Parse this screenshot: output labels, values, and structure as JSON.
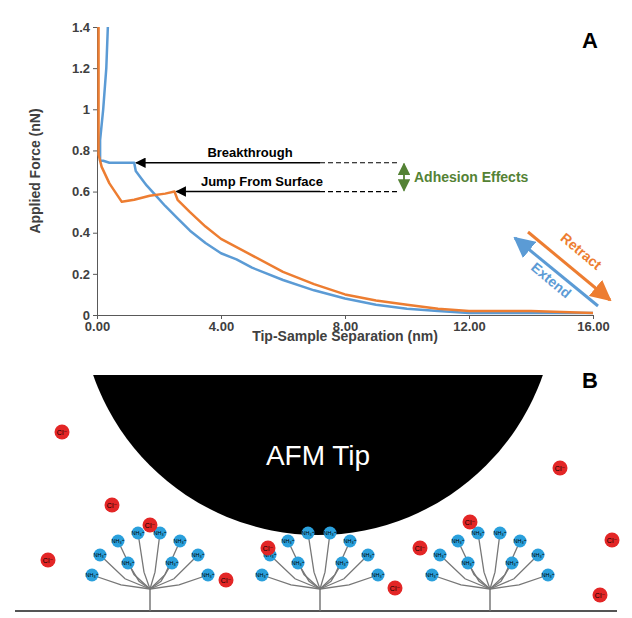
{
  "chart_data": {
    "type": "line",
    "panel_label": "A",
    "x_label": "Tip-Sample Separation (nm)",
    "y_label": "Applied Force (nN)",
    "xlim": [
      0,
      16
    ],
    "xticks": [
      {
        "value": 0,
        "label": "0.00"
      },
      {
        "value": 4,
        "label": "4.00"
      },
      {
        "value": 8,
        "label": "8.00"
      },
      {
        "value": 12,
        "label": "12.00"
      },
      {
        "value": 16,
        "label": "16.00"
      }
    ],
    "ylim": [
      0,
      1.4
    ],
    "yticks": [
      0,
      0.2,
      0.4,
      0.6,
      0.8,
      1,
      1.2,
      1.4
    ],
    "grid": false,
    "series": [
      {
        "name": "Extend",
        "color": "#5b9bd5",
        "x": [
          16,
          14,
          12,
          11,
          10,
          9,
          8,
          7,
          6,
          5,
          4.5,
          4,
          3.5,
          3,
          2.6,
          2.2,
          1.9,
          1.6,
          1.4,
          1.25,
          1.2,
          1.0,
          0.7,
          0.4,
          0.2,
          0.1,
          0.1,
          0.2,
          0.3,
          0.35
        ],
        "values": [
          0.01,
          0.01,
          0.01,
          0.02,
          0.03,
          0.05,
          0.08,
          0.12,
          0.17,
          0.23,
          0.27,
          0.3,
          0.35,
          0.41,
          0.47,
          0.53,
          0.58,
          0.63,
          0.67,
          0.7,
          0.74,
          0.74,
          0.74,
          0.74,
          0.75,
          0.75,
          0.85,
          1.0,
          1.2,
          1.4
        ]
      },
      {
        "name": "Retract",
        "color": "#ed7d31",
        "x": [
          0.05,
          0.05,
          0.05,
          0.15,
          0.4,
          0.8,
          1.2,
          1.7,
          2.2,
          2.5,
          2.6,
          3.0,
          3.5,
          4,
          5,
          6,
          7,
          8,
          9,
          10,
          11,
          12,
          14,
          16
        ],
        "values": [
          1.4,
          1.1,
          0.78,
          0.72,
          0.64,
          0.55,
          0.56,
          0.58,
          0.59,
          0.6,
          0.56,
          0.5,
          0.43,
          0.37,
          0.29,
          0.21,
          0.15,
          0.1,
          0.07,
          0.05,
          0.03,
          0.02,
          0.02,
          0.01
        ]
      }
    ],
    "annotations": [
      {
        "text": "Breakthrough",
        "x": 1.2,
        "y": 0.74
      },
      {
        "text": "Jump From Surface",
        "x": 2.5,
        "y": 0.6
      },
      {
        "text": "Adhesion Effects",
        "color": "#548235"
      }
    ]
  },
  "diagram": {
    "panel_label": "B",
    "tip_label": "AFM Tip",
    "ion_label": "Cl⁻",
    "headgroup_label": "NH₃⁺"
  }
}
